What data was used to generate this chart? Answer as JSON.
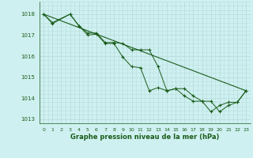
{
  "title": "Graphe pression niveau de la mer (hPa)",
  "background_color": "#cff0f0",
  "grid_color": "#b8dede",
  "line_color": "#1a5c1a",
  "ylim": [
    1012.8,
    1018.6
  ],
  "xlim": [
    -0.5,
    23.5
  ],
  "yticks": [
    1013,
    1014,
    1015,
    1016,
    1017,
    1018
  ],
  "xticks": [
    0,
    1,
    2,
    3,
    4,
    5,
    6,
    7,
    8,
    9,
    10,
    11,
    12,
    13,
    14,
    15,
    16,
    17,
    18,
    19,
    20,
    21,
    22,
    23
  ],
  "series1_x": [
    0,
    1,
    3,
    4,
    5,
    6,
    7,
    8,
    9,
    10,
    11,
    12,
    13,
    14,
    15,
    16,
    17,
    18,
    19,
    20,
    21,
    22,
    23
  ],
  "series1_y": [
    1018.0,
    1017.6,
    1018.0,
    1017.45,
    1017.1,
    1017.1,
    1016.65,
    1016.65,
    1016.6,
    1016.3,
    1016.3,
    1016.3,
    1015.5,
    1014.35,
    1014.45,
    1014.45,
    1014.1,
    1013.85,
    1013.85,
    1013.35,
    1013.65,
    1013.8,
    1014.35
  ],
  "series2_x": [
    0,
    1,
    3,
    4,
    5,
    6,
    7,
    8,
    9,
    10,
    11,
    12,
    13,
    14,
    15,
    16,
    17,
    18,
    19,
    20,
    21,
    22,
    23
  ],
  "series2_y": [
    1018.0,
    1017.55,
    1018.0,
    1017.45,
    1017.0,
    1017.05,
    1016.6,
    1016.6,
    1015.95,
    1015.5,
    1015.45,
    1014.35,
    1014.5,
    1014.35,
    1014.45,
    1014.1,
    1013.85,
    1013.85,
    1013.35,
    1013.65,
    1013.8,
    1013.8,
    1014.35
  ],
  "series3_x": [
    0,
    23
  ],
  "series3_y": [
    1018.0,
    1014.35
  ]
}
